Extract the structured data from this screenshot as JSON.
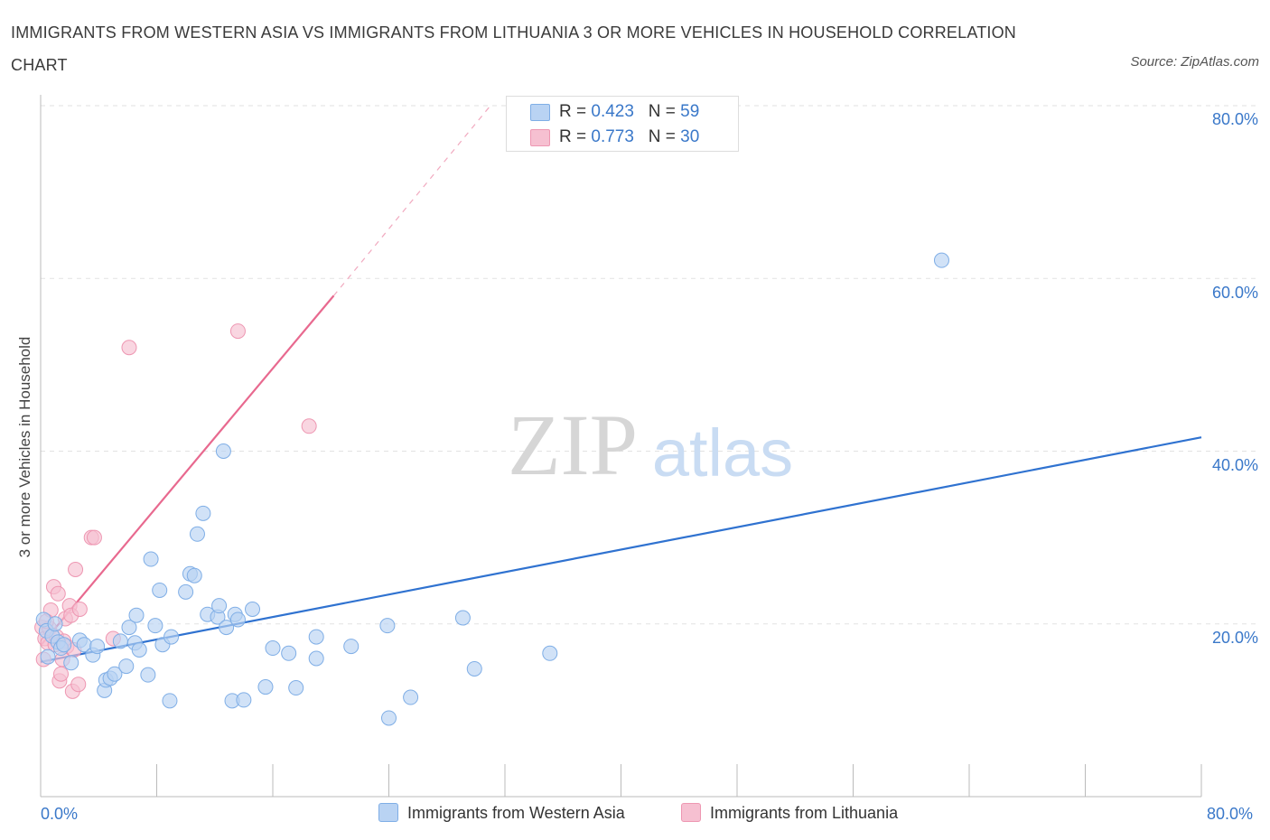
{
  "title": "IMMIGRANTS FROM WESTERN ASIA VS IMMIGRANTS FROM LITHUANIA 3 OR MORE VEHICLES IN HOUSEHOLD CORRELATION CHART",
  "source": "Source: ZipAtlas.com",
  "watermark": {
    "zip": "ZIP",
    "atlas": "atlas"
  },
  "legend": {
    "western_asia": {
      "r_label": "R = ",
      "r_value": "0.423",
      "n_label": "N = ",
      "n_value": "59"
    },
    "lithuania": {
      "r_label": "R = ",
      "r_value": "0.773",
      "n_label": "N = ",
      "n_value": "30"
    }
  },
  "colors": {
    "western_asia_fill": "#b9d3f3",
    "western_asia_stroke": "#7faee6",
    "western_asia_line": "#2f72d0",
    "lithuania_fill": "#f6c0d1",
    "lithuania_stroke": "#ee97b2",
    "lithuania_line": "#e8698f",
    "tick_text": "#3a78c9",
    "grid": "#e2e2e2"
  },
  "chart_data": {
    "type": "scatter",
    "title": "IMMIGRANTS FROM WESTERN ASIA VS IMMIGRANTS FROM LITHUANIA 3 OR MORE VEHICLES IN HOUSEHOLD CORRELATION CHART",
    "xlabel": "",
    "ylabel": "3 or more Vehicles in Household",
    "xlim": [
      0,
      80
    ],
    "ylim": [
      0,
      80
    ],
    "x_tick_labels": [
      "0.0%",
      "80.0%"
    ],
    "y_tick_labels": [
      "20.0%",
      "40.0%",
      "60.0%",
      "80.0%"
    ],
    "y_ticks": [
      20,
      40,
      60,
      80
    ],
    "grid": true,
    "legend_position": "top-center",
    "series": [
      {
        "name": "Immigrants from Western Asia",
        "color": "#b9d3f3",
        "trend": {
          "x": [
            0,
            80
          ],
          "y": [
            15.6,
            41.6
          ]
        },
        "points": [
          [
            0.2,
            20.5
          ],
          [
            0.4,
            19.2
          ],
          [
            0.5,
            16.2
          ],
          [
            0.8,
            18.6
          ],
          [
            1.0,
            20.0
          ],
          [
            1.2,
            17.9
          ],
          [
            1.4,
            17.2
          ],
          [
            1.6,
            17.6
          ],
          [
            2.1,
            15.5
          ],
          [
            2.7,
            18.1
          ],
          [
            3.0,
            17.6
          ],
          [
            3.6,
            16.4
          ],
          [
            3.9,
            17.4
          ],
          [
            4.4,
            12.3
          ],
          [
            4.5,
            13.5
          ],
          [
            4.8,
            13.7
          ],
          [
            5.1,
            14.2
          ],
          [
            5.5,
            18.0
          ],
          [
            5.9,
            15.1
          ],
          [
            6.1,
            19.6
          ],
          [
            6.5,
            17.8
          ],
          [
            6.6,
            21.0
          ],
          [
            6.8,
            17.0
          ],
          [
            7.4,
            14.1
          ],
          [
            7.6,
            27.5
          ],
          [
            7.9,
            19.8
          ],
          [
            8.2,
            23.9
          ],
          [
            8.4,
            17.6
          ],
          [
            8.9,
            11.1
          ],
          [
            9.0,
            18.5
          ],
          [
            10.0,
            23.7
          ],
          [
            10.3,
            25.8
          ],
          [
            10.6,
            25.6
          ],
          [
            10.8,
            30.4
          ],
          [
            11.2,
            32.8
          ],
          [
            11.5,
            21.1
          ],
          [
            12.2,
            20.8
          ],
          [
            12.3,
            22.1
          ],
          [
            12.6,
            40.0
          ],
          [
            12.8,
            19.6
          ],
          [
            13.2,
            11.1
          ],
          [
            13.4,
            21.1
          ],
          [
            13.6,
            20.5
          ],
          [
            14.0,
            11.2
          ],
          [
            14.6,
            21.7
          ],
          [
            15.5,
            12.7
          ],
          [
            16.0,
            17.2
          ],
          [
            17.1,
            16.6
          ],
          [
            17.6,
            12.6
          ],
          [
            19.0,
            18.5
          ],
          [
            19.0,
            16.0
          ],
          [
            21.4,
            17.4
          ],
          [
            23.9,
            19.8
          ],
          [
            24.0,
            9.1
          ],
          [
            25.5,
            11.5
          ],
          [
            29.1,
            20.7
          ],
          [
            29.9,
            14.8
          ],
          [
            35.1,
            16.6
          ],
          [
            62.1,
            62.1
          ]
        ]
      },
      {
        "name": "Immigrants from Lithuania",
        "color": "#f6c0d1",
        "trend": {
          "x": [
            0,
            20.2
          ],
          "y": [
            17.5,
            58.0
          ]
        },
        "trend_extended": {
          "x": [
            20.2,
            31.0
          ],
          "y": [
            58.0,
            80.0
          ]
        },
        "points": [
          [
            0.1,
            19.6
          ],
          [
            0.2,
            15.9
          ],
          [
            0.3,
            18.3
          ],
          [
            0.5,
            17.8
          ],
          [
            0.6,
            19.5
          ],
          [
            0.7,
            21.6
          ],
          [
            0.9,
            24.3
          ],
          [
            1.0,
            17.6
          ],
          [
            1.1,
            18.5
          ],
          [
            1.2,
            23.5
          ],
          [
            1.3,
            13.4
          ],
          [
            1.4,
            14.2
          ],
          [
            1.5,
            15.9
          ],
          [
            1.6,
            18.0
          ],
          [
            1.7,
            20.6
          ],
          [
            1.8,
            17.4
          ],
          [
            2.0,
            22.1
          ],
          [
            2.1,
            21.0
          ],
          [
            2.2,
            12.2
          ],
          [
            2.3,
            17.0
          ],
          [
            2.4,
            26.3
          ],
          [
            2.6,
            13.0
          ],
          [
            2.7,
            21.7
          ],
          [
            3.5,
            30.0
          ],
          [
            3.7,
            30.0
          ],
          [
            5.0,
            18.3
          ],
          [
            6.1,
            52.0
          ],
          [
            13.6,
            53.9
          ],
          [
            18.5,
            42.9
          ],
          [
            0.4,
            20.3
          ]
        ]
      }
    ]
  },
  "axes": {
    "y_label": "3 or more Vehicles in Household",
    "x_min_label": "0.0%",
    "x_max_label": "80.0%",
    "y_ticks": [
      "20.0%",
      "40.0%",
      "60.0%",
      "80.0%"
    ]
  },
  "bottom_legend": {
    "western_asia": "Immigrants from Western Asia",
    "lithuania": "Immigrants from Lithuania"
  }
}
